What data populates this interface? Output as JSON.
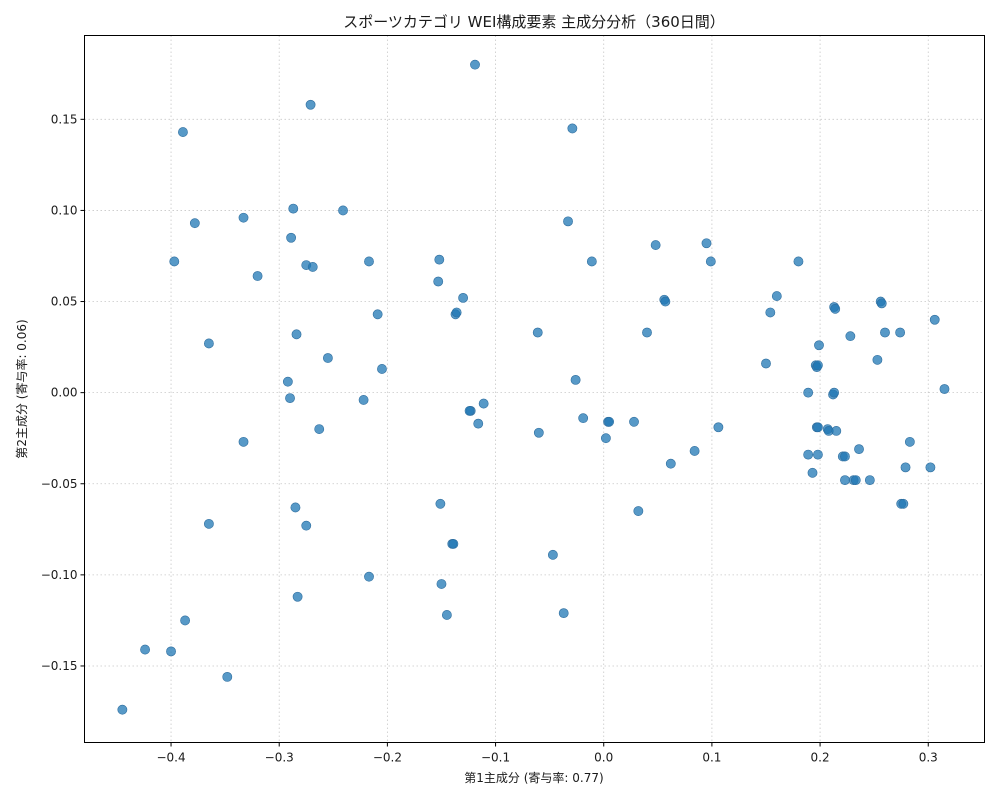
{
  "chart_data": {
    "type": "scatter",
    "title": "スポーツカテゴリ WEI構成要素 主成分分析（360日間）",
    "xlabel": "第1主成分 (寄与率: 0.77)",
    "ylabel": "第2主成分 (寄与率: 0.06)",
    "xlim": [
      -0.48,
      0.352
    ],
    "ylim": [
      -0.192,
      0.196
    ],
    "xticks": [
      -0.4,
      -0.3,
      -0.2,
      -0.1,
      0.0,
      0.1,
      0.2,
      0.3
    ],
    "xtick_labels": [
      "−0.4",
      "−0.3",
      "−0.2",
      "−0.1",
      "0.0",
      "0.1",
      "0.2",
      "0.3"
    ],
    "yticks": [
      -0.15,
      -0.1,
      -0.05,
      0.0,
      0.05,
      0.1,
      0.15
    ],
    "ytick_labels": [
      "−0.15",
      "−0.10",
      "−0.05",
      "0.00",
      "0.05",
      "0.10",
      "0.15"
    ],
    "grid": true,
    "marker_color": "#1f77b4",
    "points": [
      [
        -0.119,
        0.18
      ],
      [
        -0.271,
        0.158
      ],
      [
        -0.389,
        0.143
      ],
      [
        -0.029,
        0.145
      ],
      [
        -0.287,
        0.101
      ],
      [
        -0.241,
        0.1
      ],
      [
        -0.333,
        0.096
      ],
      [
        -0.378,
        0.093
      ],
      [
        -0.033,
        0.094
      ],
      [
        -0.289,
        0.085
      ],
      [
        -0.397,
        0.072
      ],
      [
        -0.275,
        0.07
      ],
      [
        -0.269,
        0.069
      ],
      [
        -0.217,
        0.072
      ],
      [
        -0.152,
        0.073
      ],
      [
        -0.32,
        0.064
      ],
      [
        -0.153,
        0.061
      ],
      [
        -0.13,
        0.052
      ],
      [
        -0.011,
        0.072
      ],
      [
        0.048,
        0.081
      ],
      [
        0.095,
        0.082
      ],
      [
        0.099,
        0.072
      ],
      [
        0.18,
        0.072
      ],
      [
        0.16,
        0.053
      ],
      [
        0.056,
        0.051
      ],
      [
        0.057,
        0.05
      ],
      [
        0.154,
        0.044
      ],
      [
        0.213,
        0.047
      ],
      [
        0.214,
        0.046
      ],
      [
        0.256,
        0.05
      ],
      [
        0.257,
        0.049
      ],
      [
        0.306,
        0.04
      ],
      [
        -0.209,
        0.043
      ],
      [
        -0.137,
        0.043
      ],
      [
        -0.136,
        0.044
      ],
      [
        -0.061,
        0.033
      ],
      [
        0.04,
        0.033
      ],
      [
        0.26,
        0.033
      ],
      [
        0.274,
        0.033
      ],
      [
        0.228,
        0.031
      ],
      [
        -0.284,
        0.032
      ],
      [
        -0.365,
        0.027
      ],
      [
        0.199,
        0.026
      ],
      [
        -0.255,
        0.019
      ],
      [
        0.253,
        0.018
      ],
      [
        -0.205,
        0.013
      ],
      [
        0.15,
        0.016
      ],
      [
        0.196,
        0.015
      ],
      [
        0.197,
        0.014
      ],
      [
        0.198,
        0.015
      ],
      [
        -0.292,
        0.006
      ],
      [
        -0.026,
        0.007
      ],
      [
        0.315,
        0.002
      ],
      [
        0.189,
        0.0
      ],
      [
        0.212,
        -0.001
      ],
      [
        0.213,
        0.0
      ],
      [
        -0.29,
        -0.003
      ],
      [
        -0.222,
        -0.004
      ],
      [
        -0.111,
        -0.006
      ],
      [
        -0.123,
        -0.01
      ],
      [
        -0.124,
        -0.01
      ],
      [
        -0.019,
        -0.014
      ],
      [
        0.004,
        -0.016
      ],
      [
        0.005,
        -0.016
      ],
      [
        0.028,
        -0.016
      ],
      [
        -0.116,
        -0.017
      ],
      [
        -0.263,
        -0.02
      ],
      [
        0.106,
        -0.019
      ],
      [
        0.197,
        -0.019
      ],
      [
        0.198,
        -0.019
      ],
      [
        0.207,
        -0.02
      ],
      [
        0.208,
        -0.021
      ],
      [
        0.215,
        -0.021
      ],
      [
        -0.06,
        -0.022
      ],
      [
        0.002,
        -0.025
      ],
      [
        -0.333,
        -0.027
      ],
      [
        0.283,
        -0.027
      ],
      [
        0.236,
        -0.031
      ],
      [
        0.084,
        -0.032
      ],
      [
        0.189,
        -0.034
      ],
      [
        0.198,
        -0.034
      ],
      [
        0.221,
        -0.035
      ],
      [
        0.223,
        -0.035
      ],
      [
        0.062,
        -0.039
      ],
      [
        0.279,
        -0.041
      ],
      [
        0.302,
        -0.041
      ],
      [
        0.193,
        -0.044
      ],
      [
        0.223,
        -0.048
      ],
      [
        0.231,
        -0.048
      ],
      [
        0.233,
        -0.048
      ],
      [
        0.246,
        -0.048
      ],
      [
        0.275,
        -0.061
      ],
      [
        0.277,
        -0.061
      ],
      [
        -0.151,
        -0.061
      ],
      [
        -0.285,
        -0.063
      ],
      [
        0.032,
        -0.065
      ],
      [
        -0.365,
        -0.072
      ],
      [
        -0.275,
        -0.073
      ],
      [
        -0.14,
        -0.083
      ],
      [
        -0.139,
        -0.083
      ],
      [
        -0.047,
        -0.089
      ],
      [
        -0.217,
        -0.101
      ],
      [
        -0.15,
        -0.105
      ],
      [
        -0.283,
        -0.112
      ],
      [
        -0.037,
        -0.121
      ],
      [
        -0.145,
        -0.122
      ],
      [
        -0.387,
        -0.125
      ],
      [
        -0.424,
        -0.141
      ],
      [
        -0.4,
        -0.142
      ],
      [
        -0.348,
        -0.156
      ],
      [
        -0.445,
        -0.174
      ]
    ]
  }
}
